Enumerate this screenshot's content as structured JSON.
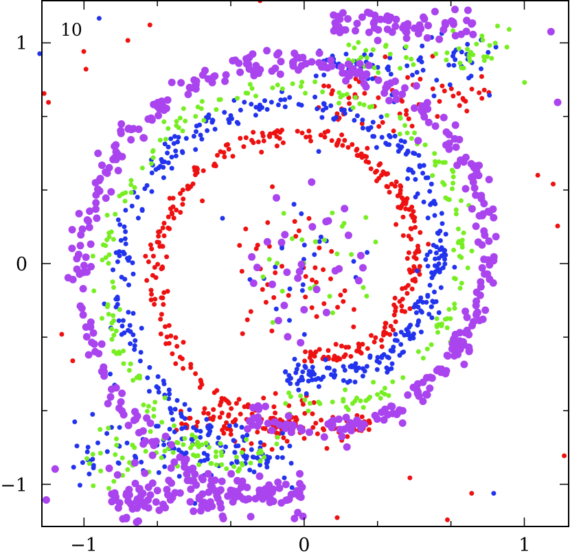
{
  "chart_data": {
    "type": "scatter",
    "title": "",
    "xlabel": "",
    "ylabel": "",
    "annotation": "10",
    "xlim": [
      -1.19,
      1.2
    ],
    "ylim": [
      -1.19,
      1.19
    ],
    "x_ticks": [
      {
        "value": -1,
        "label": "−1"
      },
      {
        "value": 0,
        "label": "0"
      },
      {
        "value": 1,
        "label": "1"
      }
    ],
    "y_ticks": [
      {
        "value": 1,
        "label": "1"
      },
      {
        "value": 0,
        "label": "0"
      },
      {
        "value": -1,
        "label": "−1"
      }
    ],
    "minor_tick_step": 0.333,
    "grid": false,
    "legend": "none",
    "series": [
      {
        "color": "#ee1111",
        "marker_size": 3.5,
        "structure": [
          {
            "kind": "spiral",
            "r0": 0.42,
            "r1": 0.75,
            "theta0": -90,
            "theta1": 270,
            "n": 330,
            "jitter": 0.022
          },
          {
            "kind": "arm",
            "cx": -0.15,
            "cy": -0.72,
            "spread_x": 0.45,
            "spread_y": 0.08,
            "n": 110
          },
          {
            "kind": "arm",
            "cx": 0.45,
            "cy": 0.75,
            "spread_x": 0.4,
            "spread_y": 0.12,
            "n": 60
          },
          {
            "kind": "scatter",
            "cx": 0.0,
            "cy": 0.0,
            "spread": 0.3,
            "n": 45
          }
        ],
        "outliers": [
          {
            "x": -1.18,
            "y": 0.77
          },
          {
            "x": -1.16,
            "y": 0.73
          },
          {
            "x": -1.0,
            "y": 0.96
          },
          {
            "x": -0.99,
            "y": 0.88
          },
          {
            "x": -0.8,
            "y": 1.01
          },
          {
            "x": -0.7,
            "y": 1.08
          },
          {
            "x": -0.2,
            "y": 1.19
          },
          {
            "x": 1.13,
            "y": 0.36
          },
          {
            "x": 1.06,
            "y": 0.4
          },
          {
            "x": 1.18,
            "y": -0.87
          },
          {
            "x": 0.65,
            "y": -1.16
          },
          {
            "x": 0.76,
            "y": -1.04
          },
          {
            "x": -1.1,
            "y": -0.32
          },
          {
            "x": -1.05,
            "y": -0.44
          },
          {
            "x": 0.48,
            "y": -0.97
          },
          {
            "x": 0.15,
            "y": -1.15
          },
          {
            "x": 1.15,
            "y": 0.17
          }
        ]
      },
      {
        "color": "#2233ee",
        "marker_size": 3.5,
        "structure": [
          {
            "kind": "spiral",
            "r0": 0.5,
            "r1": 0.92,
            "theta0": -100,
            "theta1": 260,
            "n": 420,
            "jitter": 0.03
          },
          {
            "kind": "arm",
            "cx": -0.55,
            "cy": -0.85,
            "spread_x": 0.5,
            "spread_y": 0.12,
            "n": 110
          },
          {
            "kind": "arm",
            "cx": 0.45,
            "cy": 0.9,
            "spread_x": 0.4,
            "spread_y": 0.1,
            "n": 70
          },
          {
            "kind": "scatter",
            "cx": 0.0,
            "cy": 0.0,
            "spread": 0.3,
            "n": 25
          }
        ],
        "outliers": [
          {
            "x": -1.2,
            "y": 0.95
          },
          {
            "x": -0.93,
            "y": 1.11
          },
          {
            "x": 0.87,
            "y": 0.98
          },
          {
            "x": 0.86,
            "y": -1.04
          },
          {
            "x": -0.86,
            "y": -0.55
          },
          {
            "x": -0.88,
            "y": -0.5
          }
        ]
      },
      {
        "color": "#77ee22",
        "marker_size": 3.5,
        "structure": [
          {
            "kind": "spiral",
            "r0": 0.62,
            "r1": 0.97,
            "theta0": -100,
            "theta1": 255,
            "n": 230,
            "jitter": 0.025
          },
          {
            "kind": "arm",
            "cx": -0.55,
            "cy": -0.88,
            "spread_x": 0.45,
            "spread_y": 0.1,
            "n": 60
          },
          {
            "kind": "arm",
            "cx": 0.55,
            "cy": 0.95,
            "spread_x": 0.35,
            "spread_y": 0.1,
            "n": 45
          },
          {
            "kind": "scatter",
            "cx": 0.1,
            "cy": 0.0,
            "spread": 0.25,
            "n": 25
          }
        ],
        "outliers": [
          {
            "x": 0.93,
            "y": 1.06
          },
          {
            "x": 1.0,
            "y": 0.82
          },
          {
            "x": 0.92,
            "y": 0.98
          }
        ]
      },
      {
        "color": "#aa44ee",
        "marker_size": 5.5,
        "structure": [
          {
            "kind": "spiral",
            "r0": 0.72,
            "r1": 1.08,
            "theta0": -110,
            "theta1": 250,
            "n": 420,
            "jitter": 0.03
          },
          {
            "kind": "arm",
            "cx": -0.45,
            "cy": -1.05,
            "spread_x": 0.45,
            "spread_y": 0.09,
            "n": 140
          },
          {
            "kind": "arm",
            "cx": 0.45,
            "cy": 1.08,
            "spread_x": 0.35,
            "spread_y": 0.06,
            "n": 70
          },
          {
            "kind": "scatter",
            "cx": 0.0,
            "cy": 0.0,
            "spread": 0.25,
            "n": 30
          }
        ],
        "outliers": [
          {
            "x": -1.17,
            "y": -1.07
          },
          {
            "x": -1.13,
            "y": -0.93
          },
          {
            "x": 1.15,
            "y": 0.73
          },
          {
            "x": 1.12,
            "y": 1.05
          },
          {
            "x": -0.76,
            "y": -1.17
          }
        ]
      }
    ]
  }
}
